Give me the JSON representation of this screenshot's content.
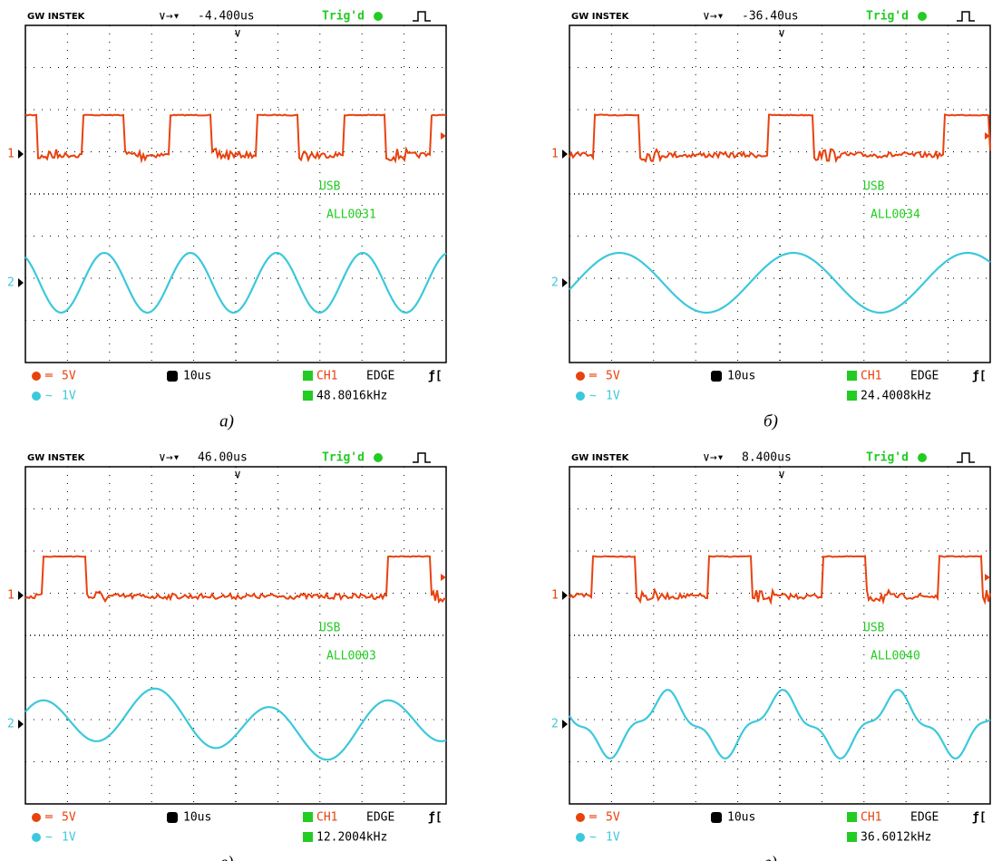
{
  "brand": "GW INSTEK",
  "trig_status": "Trig'd",
  "panels": [
    {
      "delay": "-4.400us",
      "usb": "USB",
      "file": "ALL0031",
      "ch1_label": "1",
      "ch2_label": "2",
      "ch1_coupling": "═",
      "ch1_scale": "5V",
      "ch2_coupling": "∼",
      "ch2_scale": "1V",
      "timebase": "10us",
      "trig_source": "CH1",
      "trig_type": "EDGE",
      "frequency": "48.8016kHz",
      "caption": "а)"
    },
    {
      "delay": "-36.40us",
      "usb": "USB",
      "file": "ALL0034",
      "ch1_label": "1",
      "ch2_label": "2",
      "ch1_coupling": "═",
      "ch1_scale": "5V",
      "ch2_coupling": "∼",
      "ch2_scale": "1V",
      "timebase": "10us",
      "trig_source": "CH1",
      "trig_type": "EDGE",
      "frequency": "24.4008kHz",
      "caption": "б)"
    },
    {
      "delay": "46.00us",
      "usb": "USB",
      "file": "ALL0003",
      "ch1_label": "1",
      "ch2_label": "2",
      "ch1_coupling": "═",
      "ch1_scale": "5V",
      "ch2_coupling": "∼",
      "ch2_scale": "1V",
      "timebase": "10us",
      "trig_source": "CH1",
      "trig_type": "EDGE",
      "frequency": "12.2004kHz",
      "caption": "в)"
    },
    {
      "delay": "8.400us",
      "usb": "USB",
      "file": "ALL0040",
      "ch1_label": "1",
      "ch2_label": "2",
      "ch1_coupling": "═",
      "ch1_scale": "5V",
      "ch2_coupling": "∼",
      "ch2_scale": "1V",
      "timebase": "10us",
      "trig_source": "CH1",
      "trig_type": "EDGE",
      "frequency": "36.6012kHz",
      "caption": "г)"
    }
  ]
}
